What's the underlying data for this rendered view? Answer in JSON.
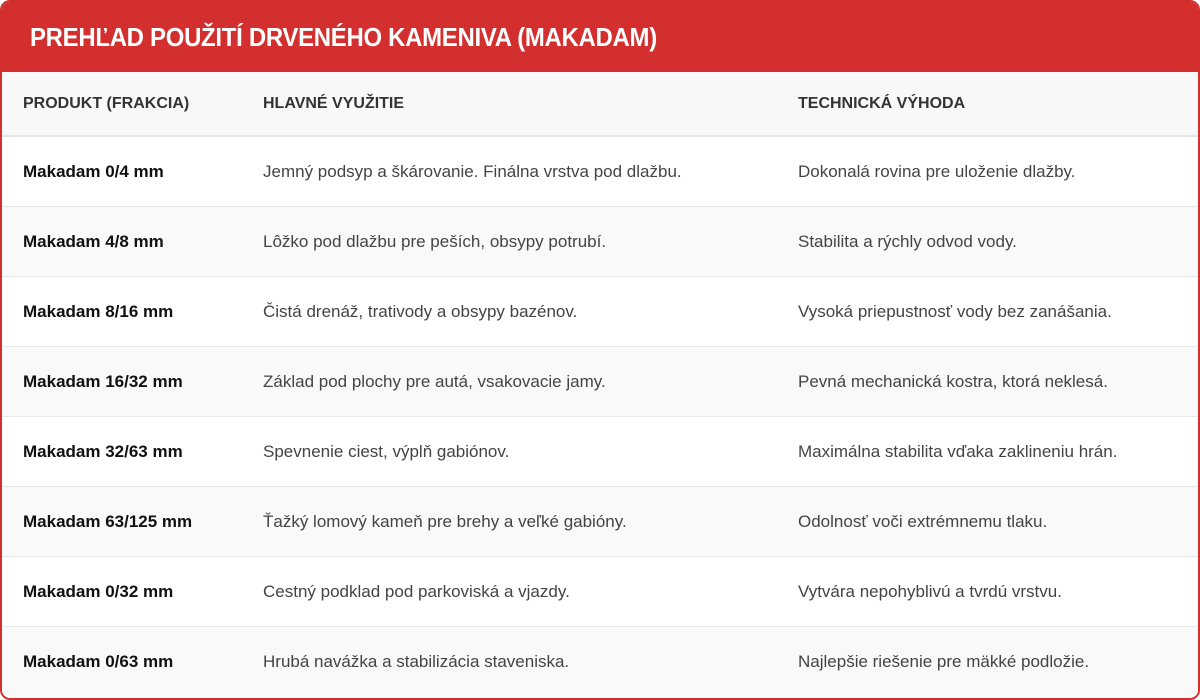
{
  "title": "PREHĽAD POUŽITÍ DRVENÉHO KAMENIVA (MAKADAM)",
  "colors": {
    "accent": "#d32f2f"
  },
  "table": {
    "headers": [
      "PRODUKT (FRAKCIA)",
      "HLAVNÉ VYUŽITIE",
      "TECHNICKÁ VÝHODA"
    ],
    "rows": [
      [
        "Makadam 0/4 mm",
        "Jemný podsyp a škárovanie. Finálna vrstva pod dlažbu.",
        "Dokonalá rovina pre uloženie dlažby."
      ],
      [
        "Makadam 4/8 mm",
        "Lôžko pod dlažbu pre peších, obsypy potrubí.",
        "Stabilita a rýchly odvod vody."
      ],
      [
        "Makadam 8/16 mm",
        "Čistá drenáž, trativody a obsypy bazénov.",
        "Vysoká priepustnosť vody bez zanášania."
      ],
      [
        "Makadam 16/32 mm",
        "Základ pod plochy pre autá, vsakovacie jamy.",
        "Pevná mechanická kostra, ktorá neklesá."
      ],
      [
        "Makadam 32/63 mm",
        "Spevnenie ciest, výplň gabiónov.",
        "Maximálna stabilita vďaka zaklineniu hrán."
      ],
      [
        "Makadam 63/125 mm",
        "Ťažký lomový kameň pre brehy a veľké gabióny.",
        "Odolnosť voči extrémnemu tlaku."
      ],
      [
        "Makadam 0/32 mm",
        "Cestný podklad pod parkoviská a vjazdy.",
        "Vytvára nepohyblivú a tvrdú vrstvu."
      ],
      [
        "Makadam 0/63 mm",
        "Hrubá navážka a stabilizácia staveniska.",
        "Najlepšie riešenie pre mäkké podložie."
      ]
    ]
  }
}
